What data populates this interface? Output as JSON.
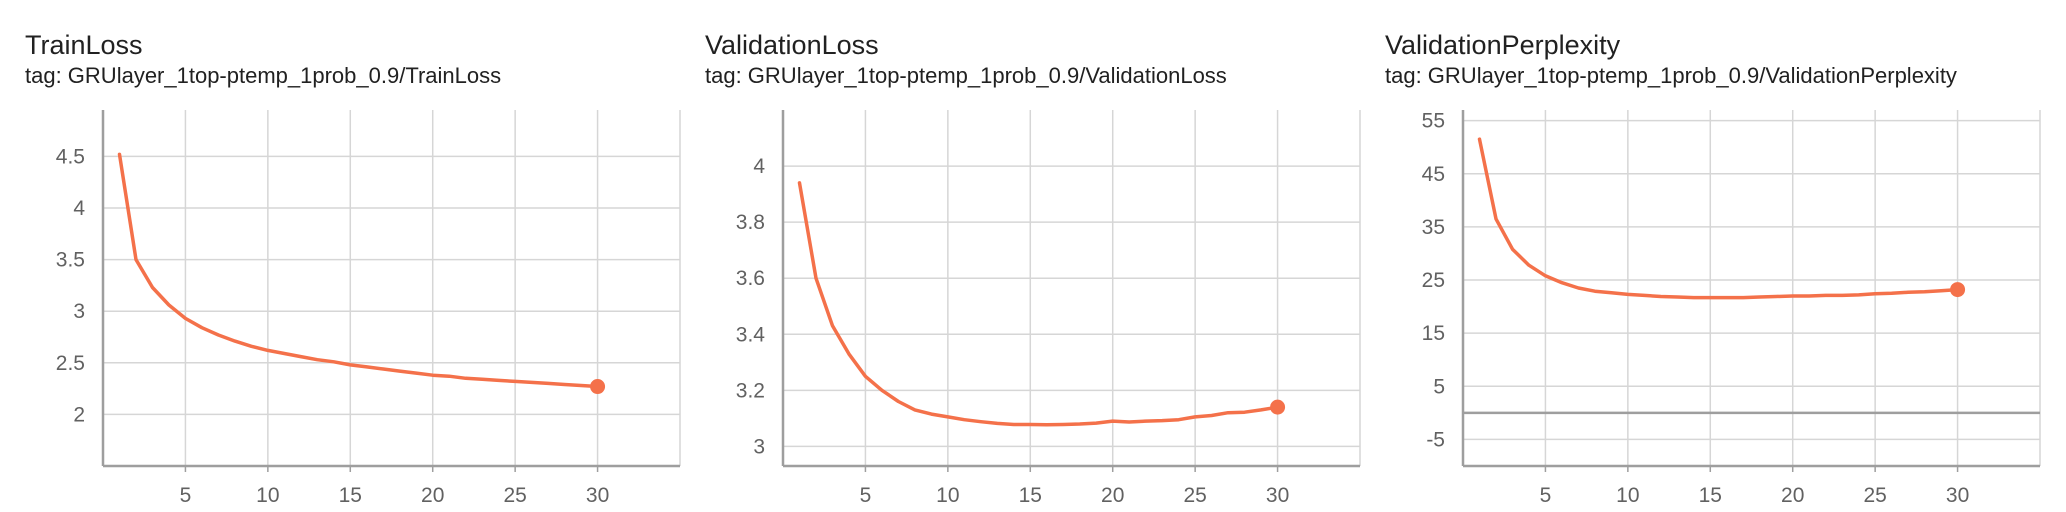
{
  "chart_data": [
    {
      "type": "line",
      "title": "TrainLoss",
      "subtitle": "tag: GRUlayer_1top-ptemp_1prob_0.9/TrainLoss",
      "xlim": [
        0,
        35
      ],
      "ylim": [
        1.5,
        4.95
      ],
      "xticks": [
        5,
        10,
        15,
        20,
        25,
        30
      ],
      "yticks": [
        2,
        2.5,
        3,
        3.5,
        4,
        4.5
      ],
      "ytick_labels": [
        "2",
        "2.5",
        "3",
        "3.5",
        "4",
        "4.5"
      ],
      "grid": true,
      "color": "#f4714a",
      "series": [
        {
          "x": [
            1,
            2,
            3,
            4,
            5,
            6,
            7,
            8,
            9,
            10,
            11,
            12,
            13,
            14,
            15,
            16,
            17,
            18,
            19,
            20,
            21,
            22,
            23,
            24,
            25,
            26,
            27,
            28,
            29,
            30
          ],
          "y": [
            4.52,
            3.5,
            3.23,
            3.06,
            2.93,
            2.84,
            2.77,
            2.71,
            2.66,
            2.62,
            2.59,
            2.56,
            2.53,
            2.51,
            2.48,
            2.46,
            2.44,
            2.42,
            2.4,
            2.38,
            2.37,
            2.35,
            2.34,
            2.33,
            2.32,
            2.31,
            2.3,
            2.29,
            2.28,
            2.27
          ]
        }
      ]
    },
    {
      "type": "line",
      "title": "ValidationLoss",
      "subtitle": "tag: GRUlayer_1top-ptemp_1prob_0.9/ValidationLoss",
      "xlim": [
        0,
        35
      ],
      "ylim": [
        2.93,
        4.2
      ],
      "xticks": [
        5,
        10,
        15,
        20,
        25,
        30
      ],
      "yticks": [
        3,
        3.2,
        3.4,
        3.6,
        3.8,
        4
      ],
      "ytick_labels": [
        "3",
        "3.2",
        "3.4",
        "3.6",
        "3.8",
        "4"
      ],
      "grid": true,
      "color": "#f4714a",
      "series": [
        {
          "x": [
            1,
            2,
            3,
            4,
            5,
            6,
            7,
            8,
            9,
            10,
            11,
            12,
            13,
            14,
            15,
            16,
            17,
            18,
            19,
            20,
            21,
            22,
            23,
            24,
            25,
            26,
            27,
            28,
            29,
            30
          ],
          "y": [
            3.94,
            3.6,
            3.43,
            3.33,
            3.25,
            3.2,
            3.16,
            3.13,
            3.115,
            3.105,
            3.095,
            3.088,
            3.082,
            3.078,
            3.078,
            3.077,
            3.078,
            3.08,
            3.083,
            3.09,
            3.087,
            3.09,
            3.092,
            3.095,
            3.105,
            3.11,
            3.12,
            3.122,
            3.13,
            3.14
          ]
        }
      ]
    },
    {
      "type": "line",
      "title": "ValidationPerplexity",
      "subtitle": "tag: GRUlayer_1top-ptemp_1prob_0.9/ValidationPerplexity",
      "xlim": [
        0,
        35
      ],
      "ylim": [
        -10,
        57
      ],
      "xticks": [
        5,
        10,
        15,
        20,
        25,
        30
      ],
      "yticks": [
        -5,
        5,
        15,
        25,
        35,
        45,
        55
      ],
      "ytick_labels": [
        "-5",
        "5",
        "15",
        "25",
        "35",
        "45",
        "55"
      ],
      "grid": true,
      "zero_line": true,
      "color": "#f4714a",
      "series": [
        {
          "x": [
            1,
            2,
            3,
            4,
            5,
            6,
            7,
            8,
            9,
            10,
            11,
            12,
            13,
            14,
            15,
            16,
            17,
            18,
            19,
            20,
            21,
            22,
            23,
            24,
            25,
            26,
            27,
            28,
            29,
            30
          ],
          "y": [
            51.5,
            36.5,
            30.8,
            27.8,
            25.8,
            24.5,
            23.5,
            22.9,
            22.6,
            22.3,
            22.1,
            21.9,
            21.8,
            21.7,
            21.7,
            21.7,
            21.7,
            21.8,
            21.9,
            22.0,
            22.0,
            22.1,
            22.1,
            22.2,
            22.4,
            22.5,
            22.7,
            22.8,
            23.0,
            23.2
          ]
        }
      ]
    }
  ]
}
